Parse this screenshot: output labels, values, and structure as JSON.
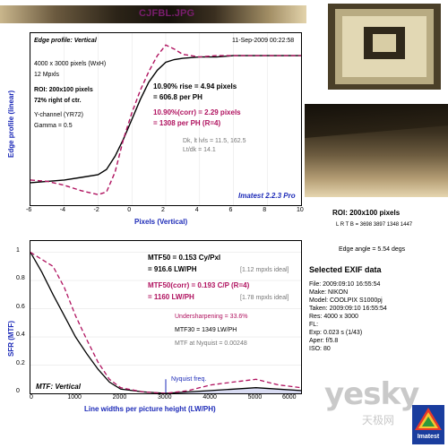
{
  "window": {
    "title": "CJFBL.JPG"
  },
  "edge_panel": {
    "title": "Edge profile: Vertical",
    "date": "11-Sep-2009 00:22:58",
    "meta1": "4000 x 3000 pixels (WxH)",
    "meta2": "12 Mpxls",
    "roi": "ROI: 200x100 pixels",
    "roi_pos": "72% right of ctr.",
    "channel": "Y-channel (YR72)",
    "gamma": "Gamma = 0.5",
    "rise1": "10.90% rise = 4.94 pixels",
    "rise2": "= 606.8 per PH",
    "corr1": "10.90%(corr) = 2.29 pixels",
    "corr2": "= 1308 per PH  (R=4)",
    "dk": "Dk, lt lvls = 11.5, 162.5",
    "ltdk": "Lt/dk = 14.1",
    "brand": "Imatest 2.2.3 Pro",
    "ylabel": "Edge profile (linear)",
    "xlabel": "Pixels (Vertical)",
    "xticks": [
      "-6",
      "-4",
      "-2",
      "0",
      "2",
      "4",
      "6",
      "8",
      "10"
    ]
  },
  "mtf_panel": {
    "mtf50": "MTF50 = 0.153 Cy/Pxl",
    "mtf50b": "= 916.6 LW/PH",
    "mtf50_ideal": "[1.12 mpxls ideal]",
    "mtf50c": "MTF50(corr) = 0.193 C/P  (R=4)",
    "mtf50d": "= 1160 LW/PH",
    "mtf50c_ideal": "[1.78 mpxls ideal]",
    "under": "Undersharpening = 33.6%",
    "mtf30": "MTF30 = 1349 LW/PH",
    "nyq": "MTF at Nyquist = 0.00248",
    "nyq_label": "Nyquist freq.",
    "title": "MTF: Vertical",
    "ylabel": "SFR (MTF)",
    "xlabel": "Line widths per picture height (LW/PH)",
    "xticks": [
      "0",
      "1000",
      "2000",
      "3000",
      "4000",
      "5000",
      "6000"
    ],
    "yticks": [
      "1",
      "0.8",
      "0.6",
      "0.4",
      "0.2",
      "0"
    ]
  },
  "roi_info": {
    "roi": "ROI: 200x100 pixels",
    "lrtb": "L R T B = 3698 3897  1348 1447",
    "edge": "Edge angle = 5.54 degs"
  },
  "exif": {
    "title": "Selected EXIF data",
    "rows": [
      "File:   2009:09:10 16:55:54",
      "Make:  NIKON",
      "Model:  COOLPIX S1000pj",
      "Taken:  2009:09:10 16:55:54",
      "Res:    4000 x 3000",
      "FL:",
      "Exp:    0.023 s  (1/43)",
      "Aper:   f/5.8",
      "ISO:    80"
    ]
  },
  "logo": {
    "text": "Imatest"
  },
  "watermark": {
    "main": "yesky",
    "sub": "天极网"
  },
  "chart_data": [
    {
      "type": "line",
      "title": "Edge profile: Vertical",
      "xlabel": "Pixels (Vertical)",
      "ylabel": "Edge profile (linear)",
      "xlim": [
        -6,
        10
      ],
      "series": [
        {
          "x": [
            -6,
            -5,
            -4,
            -3,
            -2,
            -1.5,
            -1,
            -0.5,
            0,
            0.5,
            1,
            1.5,
            2,
            2.5,
            3,
            4,
            5,
            6,
            7,
            8,
            9,
            10
          ],
          "values": [
            0.02,
            0.03,
            0.04,
            0.06,
            0.08,
            0.12,
            0.22,
            0.35,
            0.5,
            0.65,
            0.78,
            0.87,
            0.93,
            0.95,
            0.96,
            0.97,
            0.97,
            0.98,
            0.98,
            0.98,
            0.98,
            0.98
          ]
        },
        {
          "x": [
            -6,
            -5,
            -4,
            -3,
            -2,
            -1.5,
            -1,
            -0.5,
            0,
            0.5,
            1,
            1.5,
            2,
            2.5,
            3,
            4,
            5,
            6,
            7,
            8,
            9,
            10
          ],
          "values": [
            0.04,
            0.03,
            0.0,
            -0.04,
            -0.07,
            -0.05,
            0.1,
            0.35,
            0.55,
            0.72,
            0.86,
            0.98,
            1.06,
            1.03,
            0.99,
            0.97,
            0.98,
            0.98,
            0.98,
            0.98,
            0.98,
            0.98
          ]
        }
      ]
    },
    {
      "type": "line",
      "title": "MTF: Vertical",
      "xlabel": "Line widths per picture height (LW/PH)",
      "ylabel": "SFR (MTF)",
      "xlim": [
        0,
        6000
      ],
      "ylim": [
        0,
        1
      ],
      "series": [
        {
          "x": [
            0,
            250,
            500,
            750,
            1000,
            1250,
            1500,
            1750,
            2000,
            2500,
            3000,
            3500,
            4000,
            4500,
            5000,
            5500,
            6000
          ],
          "values": [
            1.0,
            0.86,
            0.7,
            0.55,
            0.4,
            0.28,
            0.17,
            0.08,
            0.03,
            0.01,
            0.0,
            0.01,
            0.02,
            0.03,
            0.04,
            0.03,
            0.02
          ]
        },
        {
          "x": [
            0,
            250,
            500,
            750,
            1000,
            1250,
            1500,
            1750,
            2000,
            2500,
            3000,
            3500,
            4000,
            4500,
            5000,
            5500,
            6000
          ],
          "values": [
            1.0,
            0.95,
            0.9,
            0.75,
            0.55,
            0.38,
            0.22,
            0.1,
            0.04,
            0.01,
            0.0,
            0.02,
            0.06,
            0.08,
            0.1,
            0.06,
            0.04
          ]
        }
      ]
    }
  ]
}
